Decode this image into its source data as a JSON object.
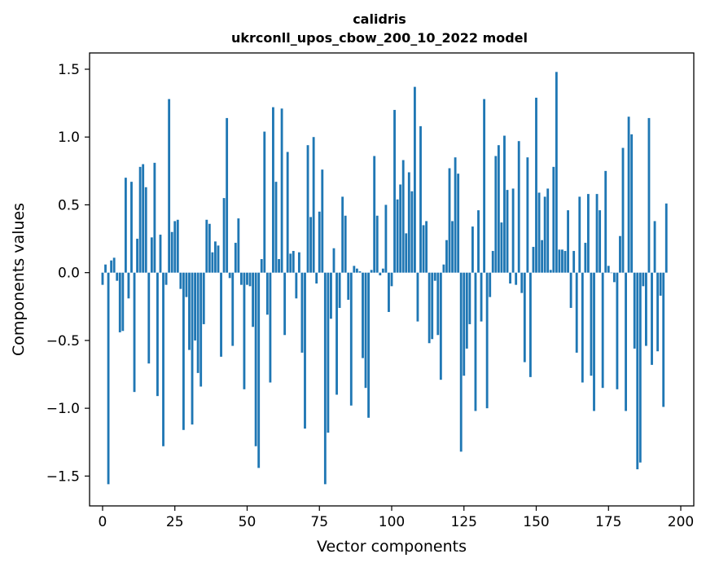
{
  "chart_data": {
    "type": "bar",
    "title": "calidris",
    "subtitle": "ukrconll_upos_cbow_200_10_2022 model",
    "xlabel": "Vector components",
    "ylabel": "Components values",
    "xlim": [
      -4.5,
      204.5
    ],
    "ylim": [
      -1.72,
      1.62
    ],
    "xticks": [
      0,
      25,
      50,
      75,
      100,
      125,
      150,
      175,
      200
    ],
    "xtick_labels": [
      "0",
      "25",
      "50",
      "75",
      "100",
      "125",
      "150",
      "175",
      "200"
    ],
    "yticks": [
      -1.5,
      -1.0,
      -0.5,
      0.0,
      0.5,
      1.0,
      1.5
    ],
    "ytick_labels": [
      "−1.5",
      "−1.0",
      "−0.5",
      "0.0",
      "0.5",
      "1.0",
      "1.5"
    ],
    "grid": false,
    "bar_color": "#1f77b4",
    "values": [
      -0.09,
      0.06,
      -1.56,
      0.09,
      0.11,
      -0.06,
      -0.44,
      -0.43,
      0.7,
      -0.19,
      0.67,
      -0.88,
      0.25,
      0.78,
      0.8,
      0.63,
      -0.67,
      0.26,
      0.81,
      -0.91,
      0.28,
      -1.28,
      -0.09,
      1.28,
      0.3,
      0.38,
      0.39,
      -0.12,
      -1.16,
      -0.18,
      -0.57,
      -1.12,
      -0.5,
      -0.74,
      -0.84,
      -0.38,
      0.39,
      0.36,
      0.15,
      0.23,
      0.2,
      -0.62,
      0.55,
      1.14,
      -0.04,
      -0.54,
      0.22,
      0.4,
      -0.09,
      -0.86,
      -0.09,
      -0.1,
      -0.4,
      -1.28,
      -1.44,
      0.1,
      1.04,
      -0.31,
      -0.81,
      1.22,
      0.67,
      0.1,
      1.21,
      -0.46,
      0.89,
      0.14,
      0.16,
      -0.19,
      0.15,
      -0.59,
      -1.15,
      0.94,
      0.41,
      1.0,
      -0.08,
      0.45,
      0.76,
      -1.56,
      -1.18,
      -0.34,
      0.18,
      -0.9,
      -0.26,
      0.56,
      0.42,
      -0.2,
      -0.98,
      0.05,
      0.03,
      0.01,
      -0.63,
      -0.85,
      -1.07,
      0.02,
      0.86,
      0.42,
      -0.02,
      0.03,
      0.5,
      -0.29,
      -0.1,
      1.2,
      0.54,
      0.65,
      0.83,
      0.29,
      0.74,
      0.6,
      1.37,
      -0.36,
      1.08,
      0.35,
      0.38,
      -0.52,
      -0.49,
      -0.06,
      -0.46,
      -0.79,
      0.06,
      0.24,
      0.77,
      0.38,
      0.85,
      0.73,
      -1.32,
      -0.76,
      -0.56,
      -0.38,
      0.34,
      -1.02,
      0.46,
      -0.36,
      1.28,
      -1.0,
      -0.18,
      0.16,
      0.86,
      0.94,
      0.37,
      1.01,
      0.61,
      -0.08,
      0.62,
      -0.09,
      0.97,
      -0.15,
      -0.66,
      0.85,
      -0.77,
      0.19,
      1.29,
      0.59,
      0.24,
      0.56,
      0.62,
      0.02,
      0.78,
      1.48,
      0.17,
      0.17,
      0.16,
      0.46,
      -0.26,
      0.16,
      -0.59,
      0.56,
      -0.81,
      0.22,
      0.58,
      -0.76,
      -1.02,
      0.58,
      0.46,
      -0.85,
      0.75,
      0.05,
      0.0,
      -0.07,
      -0.86,
      0.27,
      0.92,
      -1.02,
      1.15,
      1.02,
      -0.56,
      -1.45,
      -1.4,
      -0.1,
      -0.54,
      1.14,
      -0.68,
      0.38,
      -0.58,
      -0.17,
      -0.99,
      0.51
    ]
  }
}
